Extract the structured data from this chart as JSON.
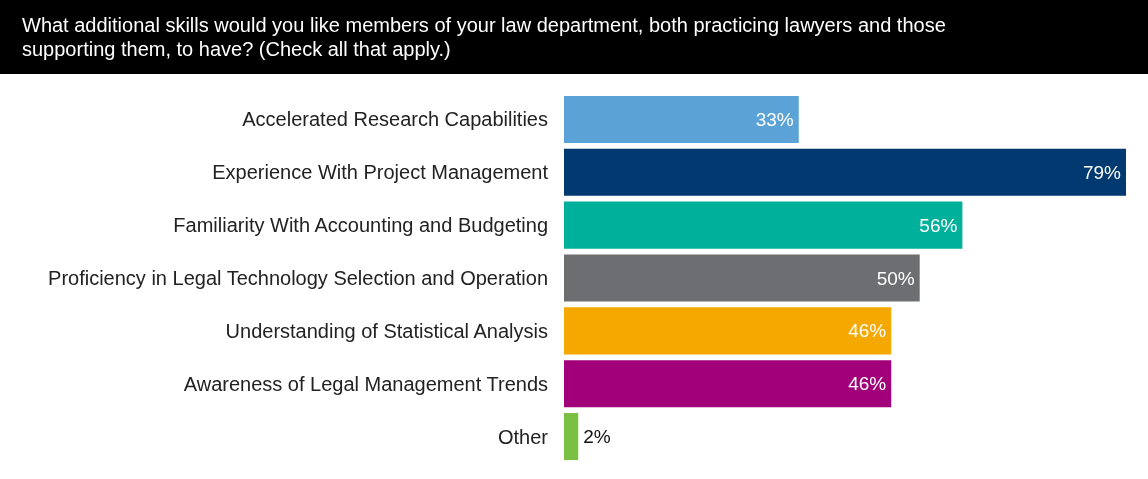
{
  "chart_data": {
    "type": "bar",
    "orientation": "horizontal",
    "title": "What additional skills would you like members of your law department, both practicing lawyers and those supporting them, to have? (Check all that apply.)",
    "categories": [
      "Accelerated Research Capabilities",
      "Experience With Project Management",
      "Familiarity With Accounting and Budgeting",
      "Proficiency in Legal Technology Selection and Operation",
      "Understanding of Statistical Analysis",
      "Awareness of Legal Management Trends",
      "Other"
    ],
    "values": [
      33,
      79,
      56,
      50,
      46,
      46,
      2
    ],
    "colors": [
      "#5ba3d6",
      "#003a70",
      "#00b09b",
      "#6d6e71",
      "#f5a800",
      "#a1007a",
      "#7ac143"
    ],
    "value_labels": [
      "33%",
      "79%",
      "56%",
      "50%",
      "46%",
      "46%",
      "2%"
    ]
  }
}
